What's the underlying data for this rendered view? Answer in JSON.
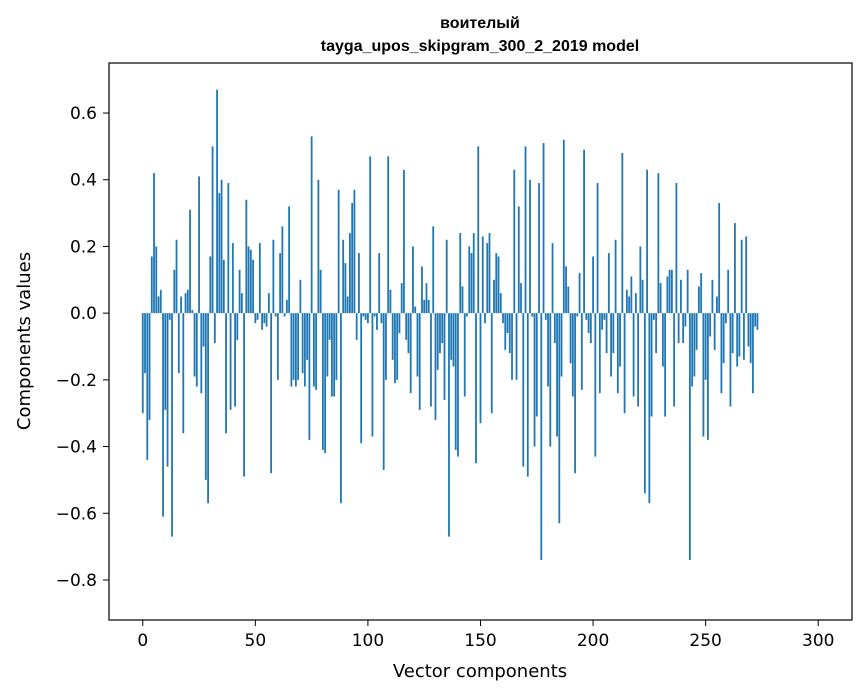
{
  "chart_data": {
    "type": "bar",
    "title": "воителый",
    "subtitle": "tayga_upos_skipgram_300_2_2019 model",
    "xlabel": "Vector components",
    "ylabel": "Components values",
    "xlim": [
      -15,
      315
    ],
    "ylim": [
      -0.92,
      0.75
    ],
    "xticks": [
      0,
      50,
      100,
      150,
      200,
      250,
      300
    ],
    "xtick_labels": [
      "0",
      "50",
      "100",
      "150",
      "200",
      "250",
      "300"
    ],
    "yticks": [
      -0.8,
      -0.6,
      -0.4,
      -0.2,
      0.0,
      0.2,
      0.4,
      0.6
    ],
    "ytick_labels": [
      "−0.8",
      "−0.6",
      "−0.4",
      "−0.2",
      "0.0",
      "0.2",
      "0.4",
      "0.6"
    ],
    "grid": false,
    "bar_color": "#1f77b4",
    "series": [
      {
        "values": [
          -0.3,
          -0.18,
          -0.44,
          -0.32,
          0.17,
          0.42,
          0.2,
          0.05,
          0.07,
          -0.61,
          -0.29,
          -0.46,
          -0.02,
          -0.67,
          0.13,
          0.22,
          -0.18,
          0.05,
          -0.36,
          0.06,
          0.07,
          0.31,
          0.01,
          -0.19,
          -0.22,
          0.41,
          -0.24,
          -0.1,
          -0.5,
          -0.57,
          0.17,
          0.5,
          -0.09,
          0.67,
          0.36,
          0.4,
          0.16,
          -0.36,
          0.39,
          -0.29,
          0.21,
          -0.28,
          -0.08,
          0.13,
          0.06,
          -0.49,
          0.34,
          0.2,
          0.19,
          0.16,
          -0.03,
          -0.02,
          0.21,
          -0.05,
          -0.03,
          -0.04,
          0.06,
          -0.48,
          0.22,
          -0.01,
          -0.2,
          0.18,
          0.26,
          -0.01,
          0.04,
          0.32,
          -0.22,
          -0.2,
          -0.22,
          -0.2,
          0.1,
          -0.18,
          -0.22,
          -0.14,
          -0.38,
          0.53,
          -0.22,
          -0.23,
          0.4,
          0.13,
          -0.41,
          -0.42,
          -0.19,
          -0.08,
          -0.25,
          -0.25,
          -0.2,
          0.37,
          -0.57,
          0.22,
          0.15,
          0.05,
          0.24,
          0.33,
          0.37,
          -0.08,
          0.18,
          -0.39,
          -0.01,
          -0.02,
          -0.03,
          0.47,
          -0.37,
          -0.01,
          -0.05,
          0.18,
          -0.03,
          -0.47,
          -0.2,
          0.47,
          0.07,
          -0.14,
          -0.21,
          -0.2,
          -0.06,
          0.09,
          0.43,
          -0.08,
          -0.12,
          -0.24,
          0.2,
          0.02,
          -0.19,
          -0.29,
          0.14,
          0.04,
          0.09,
          0.04,
          -0.28,
          0.26,
          -0.32,
          -0.17,
          -0.12,
          -0.09,
          -0.26,
          0.22,
          -0.67,
          -0.14,
          -0.16,
          -0.41,
          -0.43,
          0.24,
          0.08,
          -0.25,
          -0.01,
          0.2,
          0.18,
          0.24,
          -0.45,
          0.5,
          -0.33,
          0.23,
          -0.03,
          0.21,
          0.24,
          -0.3,
          0.1,
          0.18,
          0.17,
          0.06,
          -0.03,
          -0.11,
          -0.06,
          -0.12,
          -0.2,
          0.43,
          -0.2,
          0.32,
          0.09,
          -0.46,
          0.5,
          -0.49,
          0.4,
          -0.01,
          -0.4,
          -0.31,
          0.39,
          -0.74,
          0.51,
          -0.02,
          -0.22,
          -0.4,
          0.21,
          -0.09,
          -0.37,
          -0.63,
          -0.19,
          0.52,
          0.14,
          0.08,
          -0.15,
          -0.25,
          -0.48,
          -0.01,
          0.12,
          -0.23,
          0.49,
          -0.02,
          -0.06,
          -0.09,
          0.17,
          -0.43,
          0.39,
          -0.24,
          -0.05,
          -0.02,
          -0.12,
          0.18,
          -0.19,
          -0.12,
          0.22,
          -0.24,
          -0.16,
          0.48,
          -0.3,
          0.07,
          0.05,
          0.11,
          -0.25,
          0.06,
          -0.28,
          0.2,
          0.1,
          -0.54,
          0.43,
          -0.57,
          -0.31,
          -0.02,
          -0.12,
          0.42,
          0.09,
          -0.16,
          -0.31,
          0.11,
          0.13,
          0.13,
          -0.28,
          0.39,
          -0.09,
          0.1,
          -0.09,
          -0.04,
          0.13,
          -0.74,
          -0.22,
          -0.19,
          -0.11,
          0.08,
          0.12,
          -0.37,
          -0.2,
          -0.38,
          -0.07,
          0.1,
          -0.11,
          0.05,
          0.33,
          -0.24,
          -0.15,
          -0.03,
          0.13,
          -0.28,
          -0.12,
          0.27,
          -0.16,
          -0.13,
          0.22,
          -0.14,
          0.23,
          -0.1,
          -0.15,
          -0.24,
          -0.04,
          -0.05
        ]
      }
    ]
  }
}
